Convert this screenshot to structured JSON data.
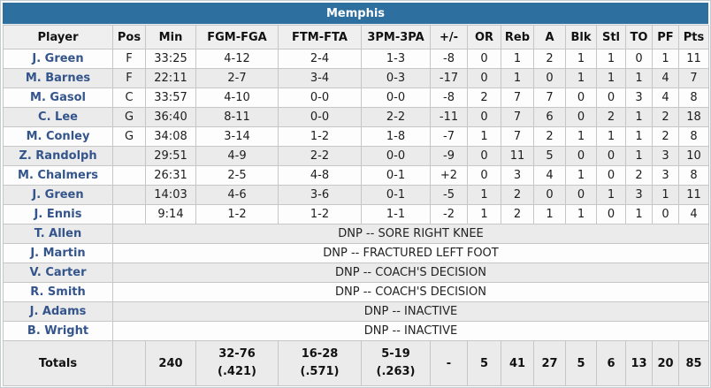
{
  "team": {
    "title": "Memphis"
  },
  "colors": {
    "header_bg": "#2d6f9e",
    "header_text": "#ffffff",
    "alt_row_bg": "#ebebeb",
    "player_link": "#34558b",
    "cell_border": "#c6c6c6",
    "col_header_bg": "#efefef"
  },
  "table": {
    "columns": [
      "Player",
      "Pos",
      "Min",
      "FGM-FGA",
      "FTM-FTA",
      "3PM-3PA",
      "+/-",
      "OR",
      "Reb",
      "A",
      "Blk",
      "Stl",
      "TO",
      "PF",
      "Pts"
    ],
    "players": [
      {
        "name": "J. Green",
        "pos": "F",
        "min": "33:25",
        "fg": "4-12",
        "ft": "2-4",
        "tp": "1-3",
        "pm": "-8",
        "or": "0",
        "reb": "1",
        "a": "2",
        "blk": "1",
        "stl": "1",
        "to": "0",
        "pf": "1",
        "pts": "11"
      },
      {
        "name": "M. Barnes",
        "pos": "F",
        "min": "22:11",
        "fg": "2-7",
        "ft": "3-4",
        "tp": "0-3",
        "pm": "-17",
        "or": "0",
        "reb": "1",
        "a": "0",
        "blk": "1",
        "stl": "1",
        "to": "1",
        "pf": "4",
        "pts": "7"
      },
      {
        "name": "M. Gasol",
        "pos": "C",
        "min": "33:57",
        "fg": "4-10",
        "ft": "0-0",
        "tp": "0-0",
        "pm": "-8",
        "or": "2",
        "reb": "7",
        "a": "7",
        "blk": "0",
        "stl": "0",
        "to": "3",
        "pf": "4",
        "pts": "8"
      },
      {
        "name": "C. Lee",
        "pos": "G",
        "min": "36:40",
        "fg": "8-11",
        "ft": "0-0",
        "tp": "2-2",
        "pm": "-11",
        "or": "0",
        "reb": "7",
        "a": "6",
        "blk": "0",
        "stl": "2",
        "to": "1",
        "pf": "2",
        "pts": "18"
      },
      {
        "name": "M. Conley",
        "pos": "G",
        "min": "34:08",
        "fg": "3-14",
        "ft": "1-2",
        "tp": "1-8",
        "pm": "-7",
        "or": "1",
        "reb": "7",
        "a": "2",
        "blk": "1",
        "stl": "1",
        "to": "1",
        "pf": "2",
        "pts": "8"
      },
      {
        "name": "Z. Randolph",
        "pos": "",
        "min": "29:51",
        "fg": "4-9",
        "ft": "2-2",
        "tp": "0-0",
        "pm": "-9",
        "or": "0",
        "reb": "11",
        "a": "5",
        "blk": "0",
        "stl": "0",
        "to": "1",
        "pf": "3",
        "pts": "10"
      },
      {
        "name": "M. Chalmers",
        "pos": "",
        "min": "26:31",
        "fg": "2-5",
        "ft": "4-8",
        "tp": "0-1",
        "pm": "+2",
        "or": "0",
        "reb": "3",
        "a": "4",
        "blk": "1",
        "stl": "0",
        "to": "2",
        "pf": "3",
        "pts": "8"
      },
      {
        "name": "J. Green",
        "pos": "",
        "min": "14:03",
        "fg": "4-6",
        "ft": "3-6",
        "tp": "0-1",
        "pm": "-5",
        "or": "1",
        "reb": "2",
        "a": "0",
        "blk": "0",
        "stl": "1",
        "to": "3",
        "pf": "1",
        "pts": "11"
      },
      {
        "name": "J. Ennis",
        "pos": "",
        "min": "9:14",
        "fg": "1-2",
        "ft": "1-2",
        "tp": "1-1",
        "pm": "-2",
        "or": "1",
        "reb": "2",
        "a": "1",
        "blk": "1",
        "stl": "0",
        "to": "1",
        "pf": "0",
        "pts": "4"
      }
    ],
    "dnp": [
      {
        "name": "T. Allen",
        "reason": "DNP -- SORE RIGHT KNEE"
      },
      {
        "name": "J. Martin",
        "reason": "DNP -- FRACTURED LEFT FOOT"
      },
      {
        "name": "V. Carter",
        "reason": "DNP -- COACH'S DECISION"
      },
      {
        "name": "R. Smith",
        "reason": "DNP -- COACH'S DECISION"
      },
      {
        "name": "J. Adams",
        "reason": "DNP -- INACTIVE"
      },
      {
        "name": "B. Wright",
        "reason": "DNP -- INACTIVE"
      }
    ],
    "totals": {
      "label": "Totals",
      "pos": "",
      "min": "240",
      "fg": "32-76",
      "fg_pct": "(.421)",
      "ft": "16-28",
      "ft_pct": "(.571)",
      "tp": "5-19",
      "tp_pct": "(.263)",
      "pm": "-",
      "or": "5",
      "reb": "41",
      "a": "27",
      "blk": "5",
      "stl": "6",
      "to": "13",
      "pf": "20",
      "pts": "85"
    }
  }
}
